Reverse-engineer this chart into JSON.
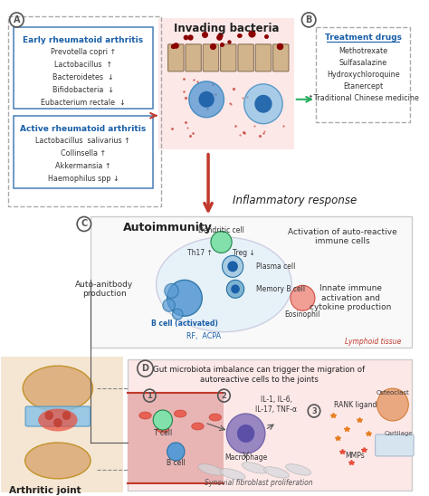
{
  "fig_width": 4.74,
  "fig_height": 5.48,
  "bg_color": "#ffffff",
  "early_ra_title": "Early rheumatoid arthritis",
  "early_ra_items": [
    "Prevotella copri ↑",
    "Lactobacillus  ↑",
    "Bacteroidetes  ↓",
    "Bifidobacteria  ↓",
    "Eubacterium rectale  ↓"
  ],
  "active_ra_title": "Active rheumatoid arthritis",
  "active_ra_items": [
    "Lactobacillus  salivarius ↑",
    "Collinsella ↑",
    "Akkermansia ↑",
    "Haemophilus spp ↓"
  ],
  "invading_bacteria_title": "Invading bacteria",
  "treatment_title": "Treatment drugs",
  "treatment_items": [
    "Methotrexate",
    "Sulfasalazine",
    "Hydroxychloroquine",
    "Etanercept",
    "↑Traditional Chinese medicine"
  ],
  "inflammatory_response": "Inflammatory response",
  "section_c_title": "Autoimmunity",
  "auto_antibody": "Auto-anitbody\nproduction",
  "activation_text": "Activation of auto-reactive\nimmune cells",
  "innate_immune": "Innate immune\nactivation and\ncytokine production",
  "rf_acpa": "RF,  ACPA",
  "lymphoid_tissue": "Lymphoid tissue",
  "section_d_title": "Gut microbiota imbalance can trigger the migration of\nautoreactive cells to the joints",
  "arthritic_joint": "Arthritic joint",
  "cytokines": "IL-1, IL-6,\nIL-17, TNF-α",
  "rank_ligand": "RANK ligand",
  "mmps": "MMPs",
  "synovial": "Synovial fibroblast proliferation",
  "osteoclast": "Osteoclast",
  "cartilage": "Cartilage",
  "label_blue": "#1a5fa8",
  "label_dark": "#333333",
  "box_border": "#888888",
  "pink_fill": "#fde8e8",
  "light_blue_fill": "#d6eaf8",
  "section_c_fill": "#f8f8f8",
  "section_d_fill": "#fde8e8",
  "arrow_red": "#c0392b",
  "arrow_green": "#27ae60",
  "circle_color": "#555555"
}
